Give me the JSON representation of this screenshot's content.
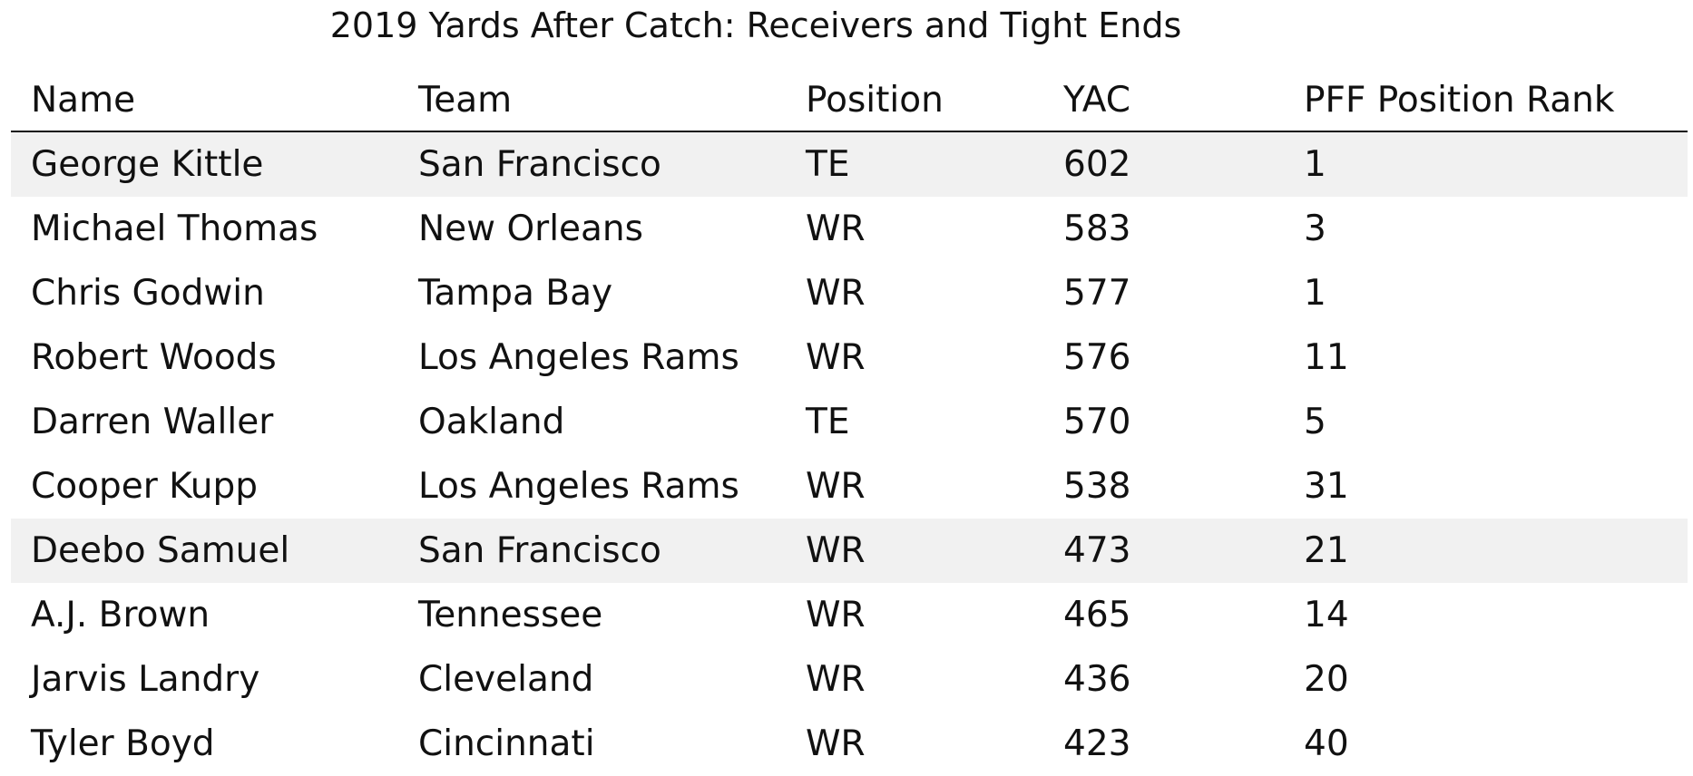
{
  "chart_data": {
    "type": "table",
    "title": "2019 Yards After Catch: Receivers and Tight Ends",
    "columns": [
      "Name",
      "Team",
      "Position",
      "YAC",
      "PFF Position Rank"
    ],
    "rows": [
      {
        "name": "George Kittle",
        "team": "San Francisco",
        "position": "TE",
        "yac": "602",
        "rank": "1",
        "highlight": true
      },
      {
        "name": "Michael Thomas",
        "team": "New Orleans",
        "position": "WR",
        "yac": "583",
        "rank": "3",
        "highlight": false
      },
      {
        "name": "Chris Godwin",
        "team": "Tampa Bay",
        "position": "WR",
        "yac": "577",
        "rank": "1",
        "highlight": false
      },
      {
        "name": "Robert Woods",
        "team": "Los Angeles Rams",
        "position": "WR",
        "yac": "576",
        "rank": "11",
        "highlight": false
      },
      {
        "name": "Darren Waller",
        "team": "Oakland",
        "position": "TE",
        "yac": "570",
        "rank": "5",
        "highlight": false
      },
      {
        "name": "Cooper Kupp",
        "team": "Los Angeles Rams",
        "position": "WR",
        "yac": "538",
        "rank": "31",
        "highlight": false
      },
      {
        "name": "Deebo Samuel",
        "team": "San Francisco",
        "position": "WR",
        "yac": "473",
        "rank": "21",
        "highlight": true
      },
      {
        "name": "A.J. Brown",
        "team": "Tennessee",
        "position": "WR",
        "yac": "465",
        "rank": "14",
        "highlight": false
      },
      {
        "name": "Jarvis Landry",
        "team": "Cleveland",
        "position": "WR",
        "yac": "436",
        "rank": "20",
        "highlight": false
      },
      {
        "name": "Tyler Boyd",
        "team": "Cincinnati",
        "position": "WR",
        "yac": "423",
        "rank": "40",
        "highlight": false
      }
    ],
    "colors": {
      "highlight_row": "#f1f1f1",
      "text": "#111111",
      "rule": "#111111"
    }
  }
}
